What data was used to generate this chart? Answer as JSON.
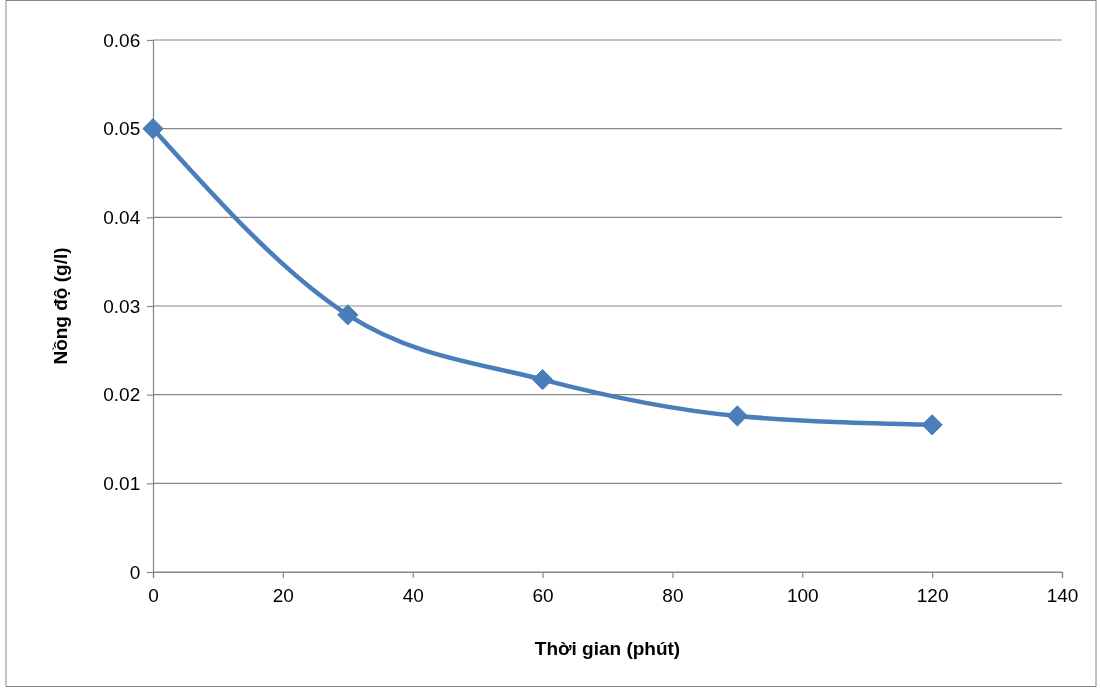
{
  "chart_data": {
    "type": "line",
    "xlabel": "Thời gian (phút)",
    "ylabel": "Nồng độ (g/l)",
    "x": [
      0,
      30,
      60,
      90,
      120
    ],
    "series": [
      {
        "color": "#4a7ebb",
        "values": [
          0.05,
          0.029,
          0.0217,
          0.0176,
          0.0166
        ]
      }
    ],
    "xlim": [
      0,
      140
    ],
    "xticks": [
      0,
      20,
      40,
      60,
      80,
      100,
      120,
      140
    ],
    "ylim": [
      0,
      0.06
    ],
    "yticks": [
      0,
      0.01,
      0.02,
      0.03,
      0.04,
      0.05,
      0.06
    ],
    "grid": "y",
    "marker": "diamond",
    "line_style": "solid"
  }
}
